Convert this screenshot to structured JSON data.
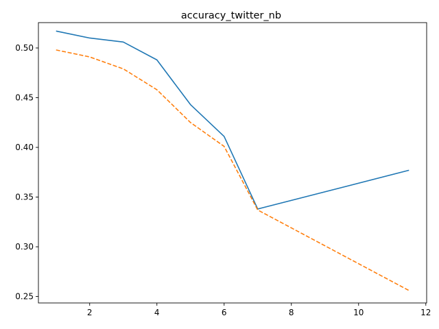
{
  "chart_data": {
    "type": "line",
    "title": "accuracy_twitter_nb",
    "xlabel": "",
    "ylabel": "",
    "xlim": [
      0.475,
      12.025
    ],
    "ylim": [
      0.2435,
      0.5255
    ],
    "x_ticks": [
      2,
      4,
      6,
      8,
      10,
      12
    ],
    "y_ticks": [
      0.25,
      0.3,
      0.35,
      0.4,
      0.45,
      0.5
    ],
    "grid": false,
    "legend": "none",
    "series": [
      {
        "color": "#1f77b4",
        "style": "solid",
        "x": [
          1,
          2,
          3,
          4,
          5,
          6,
          7,
          11.5
        ],
        "y": [
          0.517,
          0.51,
          0.506,
          0.488,
          0.443,
          0.411,
          0.338,
          0.377
        ]
      },
      {
        "color": "#ff7f0e",
        "style": "dashed",
        "x": [
          1,
          2,
          3,
          4,
          5,
          6,
          7,
          11.5
        ],
        "y": [
          0.498,
          0.491,
          0.479,
          0.458,
          0.425,
          0.401,
          0.337,
          0.256
        ]
      }
    ]
  }
}
